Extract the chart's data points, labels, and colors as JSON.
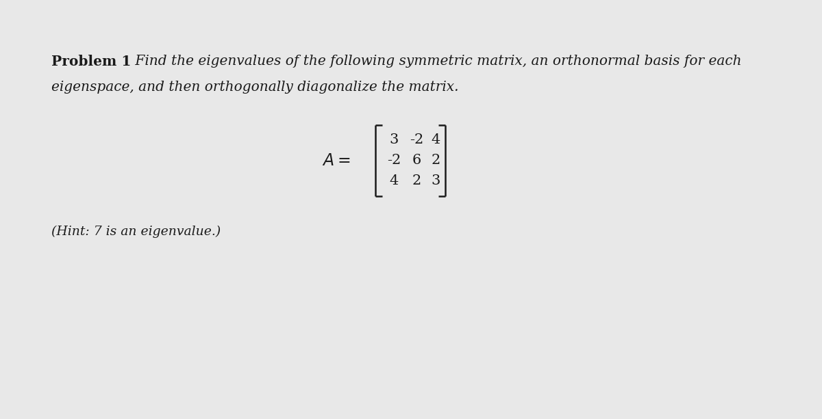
{
  "background_color": "#e8e8e8",
  "title_bold": "Problem 1",
  "title_italic": " Find the eigenvalues of the following symmetric matrix, an orthonormal basis for each",
  "line2_italic": "eigenspace, and then orthogonally diagonalize the matrix.",
  "hint_text": "(Hint: 7 is an eigenvalue.)",
  "matrix": [
    [
      "3",
      "-2",
      "4"
    ],
    [
      "-2",
      "6",
      "2"
    ],
    [
      "4",
      "2",
      "3"
    ]
  ],
  "text_color": "#1a1a1a",
  "font_size_main": 14.5,
  "font_size_matrix": 15,
  "font_size_hint": 13.5
}
